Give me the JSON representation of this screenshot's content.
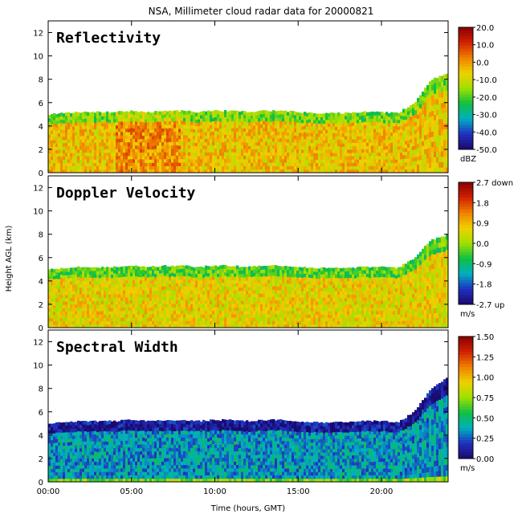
{
  "title": "NSA, Millimeter cloud radar data for 20000821",
  "xlabel": "Time (hours, GMT)",
  "ylabel": "Height AGL (km)",
  "x_ticks": [
    "00:00",
    "05:00",
    "10:00",
    "15:00",
    "20:00"
  ],
  "y_ticks": [
    "0",
    "2",
    "4",
    "6",
    "8",
    "10",
    "12"
  ],
  "chart_data": [
    {
      "type": "heatmap",
      "panel_title": "Reflectivity",
      "colorbar_ticks": [
        "20.0",
        "10.0",
        "0.0",
        "-10.0",
        "-20.0",
        "-30.0",
        "-40.0",
        "-50.0"
      ],
      "colorbar_unit": "dBZ",
      "vmin": -50,
      "vmax": 20,
      "x_range_hours": [
        0,
        24
      ],
      "y_range_km": [
        0,
        13
      ],
      "cloud_top_km": [
        5.0,
        5.1,
        5.2,
        5.2,
        5.2,
        5.3,
        5.2,
        5.3,
        5.3,
        5.2,
        5.3,
        5.3,
        5.2,
        5.3,
        5.3,
        5.2,
        5.1,
        5.1,
        5.1,
        5.2,
        5.2,
        5.1,
        6.0,
        8.0,
        8.5
      ],
      "typical_value": -5,
      "colormap": [
        "#1a0a70",
        "#2030c0",
        "#00b0c0",
        "#10c040",
        "#a0e000",
        "#f0d000",
        "#f08000",
        "#d02000",
        "#8a0000"
      ]
    },
    {
      "type": "heatmap",
      "panel_title": "Doppler Velocity",
      "colorbar_ticks": [
        "2.7 down",
        "1.8",
        "0.9",
        "0.0",
        "-0.9",
        "-1.8",
        "-2.7 up"
      ],
      "colorbar_unit": "m/s",
      "vmin": -2.7,
      "vmax": 2.7,
      "x_range_hours": [
        0,
        24
      ],
      "y_range_km": [
        0,
        13
      ],
      "cloud_top_km": [
        5.0,
        5.1,
        5.2,
        5.2,
        5.2,
        5.3,
        5.2,
        5.3,
        5.3,
        5.2,
        5.3,
        5.3,
        5.2,
        5.3,
        5.3,
        5.2,
        5.1,
        5.1,
        5.1,
        5.2,
        5.2,
        5.1,
        6.0,
        7.5,
        8.0
      ],
      "typical_value": 0.6,
      "colormap": [
        "#1a0a70",
        "#2030c0",
        "#00b0c0",
        "#10c040",
        "#a0e000",
        "#f0d000",
        "#f08000",
        "#d02000",
        "#8a0000"
      ]
    },
    {
      "type": "heatmap",
      "panel_title": "Spectral Width",
      "colorbar_ticks": [
        "1.50",
        "1.25",
        "1.00",
        "0.75",
        "0.50",
        "0.25",
        "0.00"
      ],
      "colorbar_unit": "m/s",
      "vmin": 0,
      "vmax": 1.5,
      "x_range_hours": [
        0,
        24
      ],
      "y_range_km": [
        0,
        13
      ],
      "cloud_top_km": [
        5.0,
        5.1,
        5.2,
        5.2,
        5.2,
        5.3,
        5.2,
        5.3,
        5.3,
        5.2,
        5.3,
        5.3,
        5.2,
        5.3,
        5.3,
        5.2,
        5.1,
        5.1,
        5.1,
        5.2,
        5.2,
        5.1,
        6.0,
        8.0,
        9.0
      ],
      "typical_value": 0.35,
      "colormap": [
        "#1a0a70",
        "#2030c0",
        "#00b0c0",
        "#10c040",
        "#a0e000",
        "#f0d000",
        "#f08000",
        "#d02000",
        "#8a0000"
      ]
    }
  ]
}
